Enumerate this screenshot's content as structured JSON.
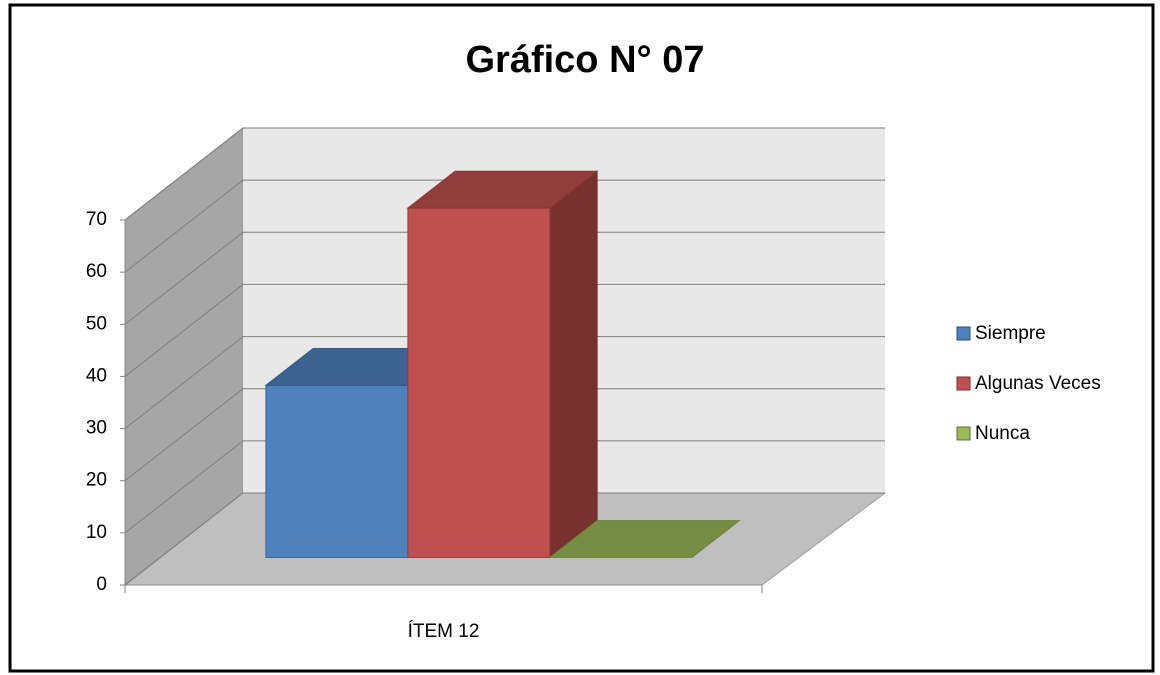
{
  "chart_data": {
    "type": "bar3d",
    "title": "Gráfico N° 07",
    "categories": [
      "ÍTEM 12"
    ],
    "series": [
      {
        "name": "Siempre",
        "color": "#4f81bd",
        "values": [
          33
        ]
      },
      {
        "name": "Algunas Veces",
        "color": "#c0504d",
        "values": [
          67
        ]
      },
      {
        "name": "Nunca",
        "color": "#9bbb59",
        "values": [
          0
        ]
      }
    ],
    "ylim": [
      0,
      70
    ],
    "yticks": [
      0,
      10,
      20,
      30,
      40,
      50,
      60,
      70
    ],
    "grid": true,
    "legend": "right"
  }
}
